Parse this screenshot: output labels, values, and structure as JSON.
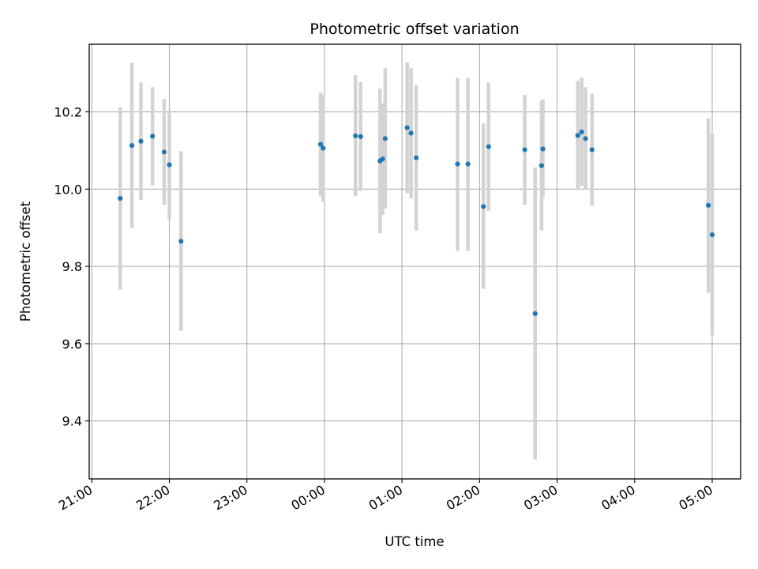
{
  "chart_data": {
    "type": "scatter",
    "title": "Photometric offset variation",
    "xlabel": "UTC time",
    "ylabel": "Photometric offset",
    "x_ticks": [
      "21:00",
      "22:00",
      "23:00",
      "00:00",
      "01:00",
      "02:00",
      "03:00",
      "04:00",
      "05:00"
    ],
    "y_ticks": [
      "9.4",
      "9.6",
      "9.8",
      "10.0",
      "10.2"
    ],
    "xlim": [
      "20:58",
      "05:22"
    ],
    "ylim": [
      9.25,
      10.375
    ],
    "grid": true,
    "colors": {
      "point": "#1f77b4",
      "errorbar": "#d3d3d3",
      "grid": "#b0b0b0"
    },
    "series": [
      {
        "points": [
          {
            "x": "21:22",
            "y": 9.976,
            "lo": 9.74,
            "hi": 10.212
          },
          {
            "x": "21:31",
            "y": 10.113,
            "lo": 9.9,
            "hi": 10.327
          },
          {
            "x": "21:38",
            "y": 10.124,
            "lo": 9.972,
            "hi": 10.276
          },
          {
            "x": "21:47",
            "y": 10.137,
            "lo": 10.01,
            "hi": 10.264
          },
          {
            "x": "21:56",
            "y": 10.096,
            "lo": 9.96,
            "hi": 10.233
          },
          {
            "x": "22:00",
            "y": 10.063,
            "lo": 9.922,
            "hi": 10.204
          },
          {
            "x": "22:09",
            "y": 9.865,
            "lo": 9.633,
            "hi": 10.098
          },
          {
            "x": "23:57",
            "y": 10.116,
            "lo": 9.982,
            "hi": 10.25
          },
          {
            "x": "23:59",
            "y": 10.106,
            "lo": 9.968,
            "hi": 10.244
          },
          {
            "x": "00:24",
            "y": 10.138,
            "lo": 9.982,
            "hi": 10.295
          },
          {
            "x": "00:28",
            "y": 10.136,
            "lo": 9.995,
            "hi": 10.277
          },
          {
            "x": "00:43",
            "y": 10.073,
            "lo": 9.886,
            "hi": 10.26
          },
          {
            "x": "00:45",
            "y": 10.078,
            "lo": 9.933,
            "hi": 10.222
          },
          {
            "x": "00:47",
            "y": 10.131,
            "lo": 9.95,
            "hi": 10.313
          },
          {
            "x": "01:04",
            "y": 10.159,
            "lo": 9.99,
            "hi": 10.328
          },
          {
            "x": "01:07",
            "y": 10.145,
            "lo": 9.977,
            "hi": 10.313
          },
          {
            "x": "01:11",
            "y": 10.081,
            "lo": 9.893,
            "hi": 10.27
          },
          {
            "x": "01:43",
            "y": 10.065,
            "lo": 9.84,
            "hi": 10.288
          },
          {
            "x": "01:51",
            "y": 10.065,
            "lo": 9.84,
            "hi": 10.288
          },
          {
            "x": "02:03",
            "y": 9.955,
            "lo": 9.742,
            "hi": 10.17
          },
          {
            "x": "02:07",
            "y": 10.11,
            "lo": 9.944,
            "hi": 10.276
          },
          {
            "x": "02:35",
            "y": 10.102,
            "lo": 9.96,
            "hi": 10.244
          },
          {
            "x": "02:43",
            "y": 9.678,
            "lo": 9.3,
            "hi": 10.056
          },
          {
            "x": "02:48",
            "y": 10.061,
            "lo": 9.893,
            "hi": 10.229
          },
          {
            "x": "02:49",
            "y": 10.104,
            "lo": 9.978,
            "hi": 10.232
          },
          {
            "x": "03:16",
            "y": 10.139,
            "lo": 9.998,
            "hi": 10.28
          },
          {
            "x": "03:19",
            "y": 10.148,
            "lo": 10.008,
            "hi": 10.288
          },
          {
            "x": "03:22",
            "y": 10.131,
            "lo": 9.998,
            "hi": 10.264
          },
          {
            "x": "03:27",
            "y": 10.102,
            "lo": 9.957,
            "hi": 10.247
          },
          {
            "x": "04:57",
            "y": 9.958,
            "lo": 9.732,
            "hi": 10.183
          },
          {
            "x": "05:00",
            "y": 9.882,
            "lo": 9.621,
            "hi": 10.143
          }
        ]
      }
    ]
  }
}
